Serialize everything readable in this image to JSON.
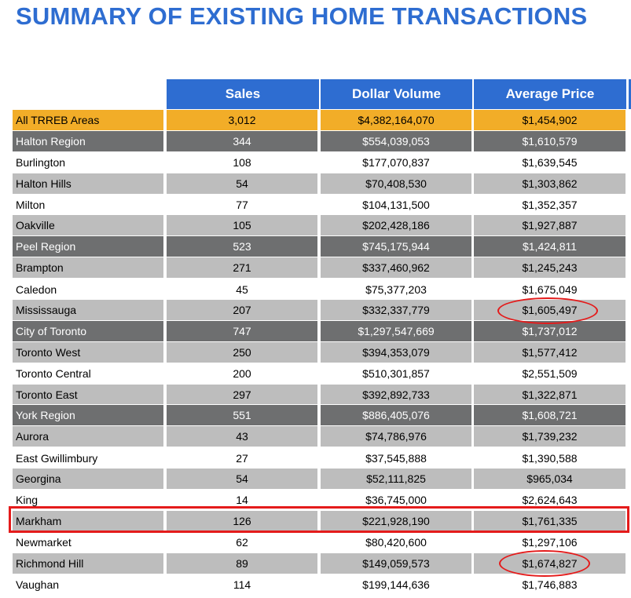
{
  "title": "SUMMARY OF EXISTING HOME TRANSACTIONS",
  "columns": [
    "Sales",
    "Dollar Volume",
    "Average Price"
  ],
  "rows": [
    {
      "area": "All TRREB Areas",
      "sales": "3,012",
      "volume": "$4,382,164,070",
      "avg": "$1,454,902",
      "style": "o"
    },
    {
      "area": "Halton Region",
      "sales": "344",
      "volume": "$554,039,053",
      "avg": "$1,610,579",
      "style": "d"
    },
    {
      "area": "Burlington",
      "sales": "108",
      "volume": "$177,070,837",
      "avg": "$1,639,545",
      "style": "w"
    },
    {
      "area": "Halton Hills",
      "sales": "54",
      "volume": "$70,408,530",
      "avg": "$1,303,862",
      "style": "g"
    },
    {
      "area": "Milton",
      "sales": "77",
      "volume": "$104,131,500",
      "avg": "$1,352,357",
      "style": "w"
    },
    {
      "area": "Oakville",
      "sales": "105",
      "volume": "$202,428,186",
      "avg": "$1,927,887",
      "style": "g"
    },
    {
      "area": "Peel Region",
      "sales": "523",
      "volume": "$745,175,944",
      "avg": "$1,424,811",
      "style": "d"
    },
    {
      "area": "Brampton",
      "sales": "271",
      "volume": "$337,460,962",
      "avg": "$1,245,243",
      "style": "g"
    },
    {
      "area": "Caledon",
      "sales": "45",
      "volume": "$75,377,203",
      "avg": "$1,675,049",
      "style": "w"
    },
    {
      "area": "Mississauga",
      "sales": "207",
      "volume": "$332,337,779",
      "avg": "$1,605,497",
      "style": "g"
    },
    {
      "area": "City of Toronto",
      "sales": "747",
      "volume": "$1,297,547,669",
      "avg": "$1,737,012",
      "style": "d"
    },
    {
      "area": "Toronto West",
      "sales": "250",
      "volume": "$394,353,079",
      "avg": "$1,577,412",
      "style": "g"
    },
    {
      "area": "Toronto Central",
      "sales": "200",
      "volume": "$510,301,857",
      "avg": "$2,551,509",
      "style": "w"
    },
    {
      "area": "Toronto East",
      "sales": "297",
      "volume": "$392,892,733",
      "avg": "$1,322,871",
      "style": "g"
    },
    {
      "area": "York Region",
      "sales": "551",
      "volume": "$886,405,076",
      "avg": "$1,608,721",
      "style": "d"
    },
    {
      "area": "Aurora",
      "sales": "43",
      "volume": "$74,786,976",
      "avg": "$1,739,232",
      "style": "g"
    },
    {
      "area": "East Gwillimbury",
      "sales": "27",
      "volume": "$37,545,888",
      "avg": "$1,390,588",
      "style": "w"
    },
    {
      "area": "Georgina",
      "sales": "54",
      "volume": "$52,111,825",
      "avg": "$965,034",
      "style": "g"
    },
    {
      "area": "King",
      "sales": "14",
      "volume": "$36,745,000",
      "avg": "$2,624,643",
      "style": "w"
    },
    {
      "area": "Markham",
      "sales": "126",
      "volume": "$221,928,190",
      "avg": "$1,761,335",
      "style": "g"
    },
    {
      "area": "Newmarket",
      "sales": "62",
      "volume": "$80,420,600",
      "avg": "$1,297,106",
      "style": "w"
    },
    {
      "area": "Richmond Hill",
      "sales": "89",
      "volume": "$149,059,573",
      "avg": "$1,674,827",
      "style": "g"
    },
    {
      "area": "Vaughan",
      "sales": "114",
      "volume": "$199,144,636",
      "avg": "$1,746,883",
      "style": "w"
    }
  ],
  "annotations": {
    "highlight_color": "#e41b1b"
  }
}
